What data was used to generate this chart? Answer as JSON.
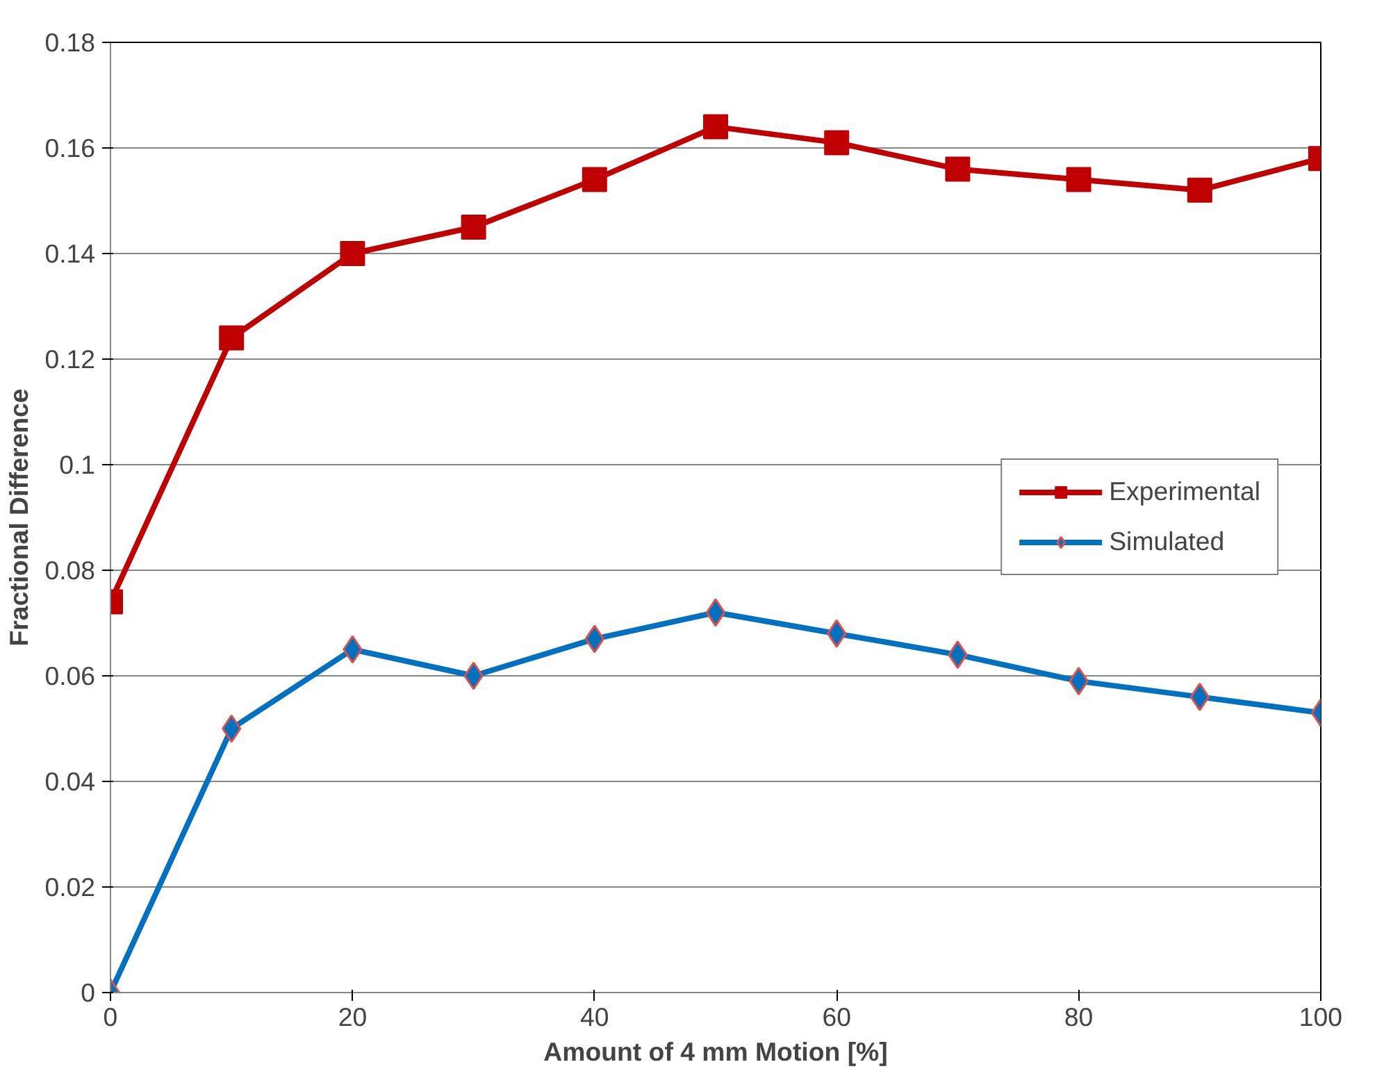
{
  "chart_data": {
    "type": "line",
    "xlabel": "Amount of 4 mm Motion [%]",
    "ylabel": "Fractional Difference",
    "x": [
      0,
      10,
      20,
      30,
      40,
      50,
      60,
      70,
      80,
      90,
      100
    ],
    "series": [
      {
        "name": "Experimental",
        "color": "#c00000",
        "marker": "square",
        "values": [
          0.074,
          0.124,
          0.14,
          0.145,
          0.154,
          0.164,
          0.161,
          0.156,
          0.154,
          0.152,
          0.158
        ]
      },
      {
        "name": "Simulated",
        "color": "#0070c0",
        "marker": "diamond",
        "values": [
          0.0,
          0.05,
          0.065,
          0.06,
          0.067,
          0.072,
          0.068,
          0.064,
          0.059,
          0.056,
          0.053
        ]
      }
    ],
    "xlim": [
      0,
      100
    ],
    "xticks": [
      0,
      20,
      40,
      60,
      80,
      100
    ],
    "ylim": [
      0,
      0.18
    ],
    "yticks": [
      0,
      0.02,
      0.04,
      0.06,
      0.08,
      0.1,
      0.12,
      0.14,
      0.16,
      0.18
    ],
    "grid": "y",
    "legend": "right",
    "line_style": "solid"
  }
}
